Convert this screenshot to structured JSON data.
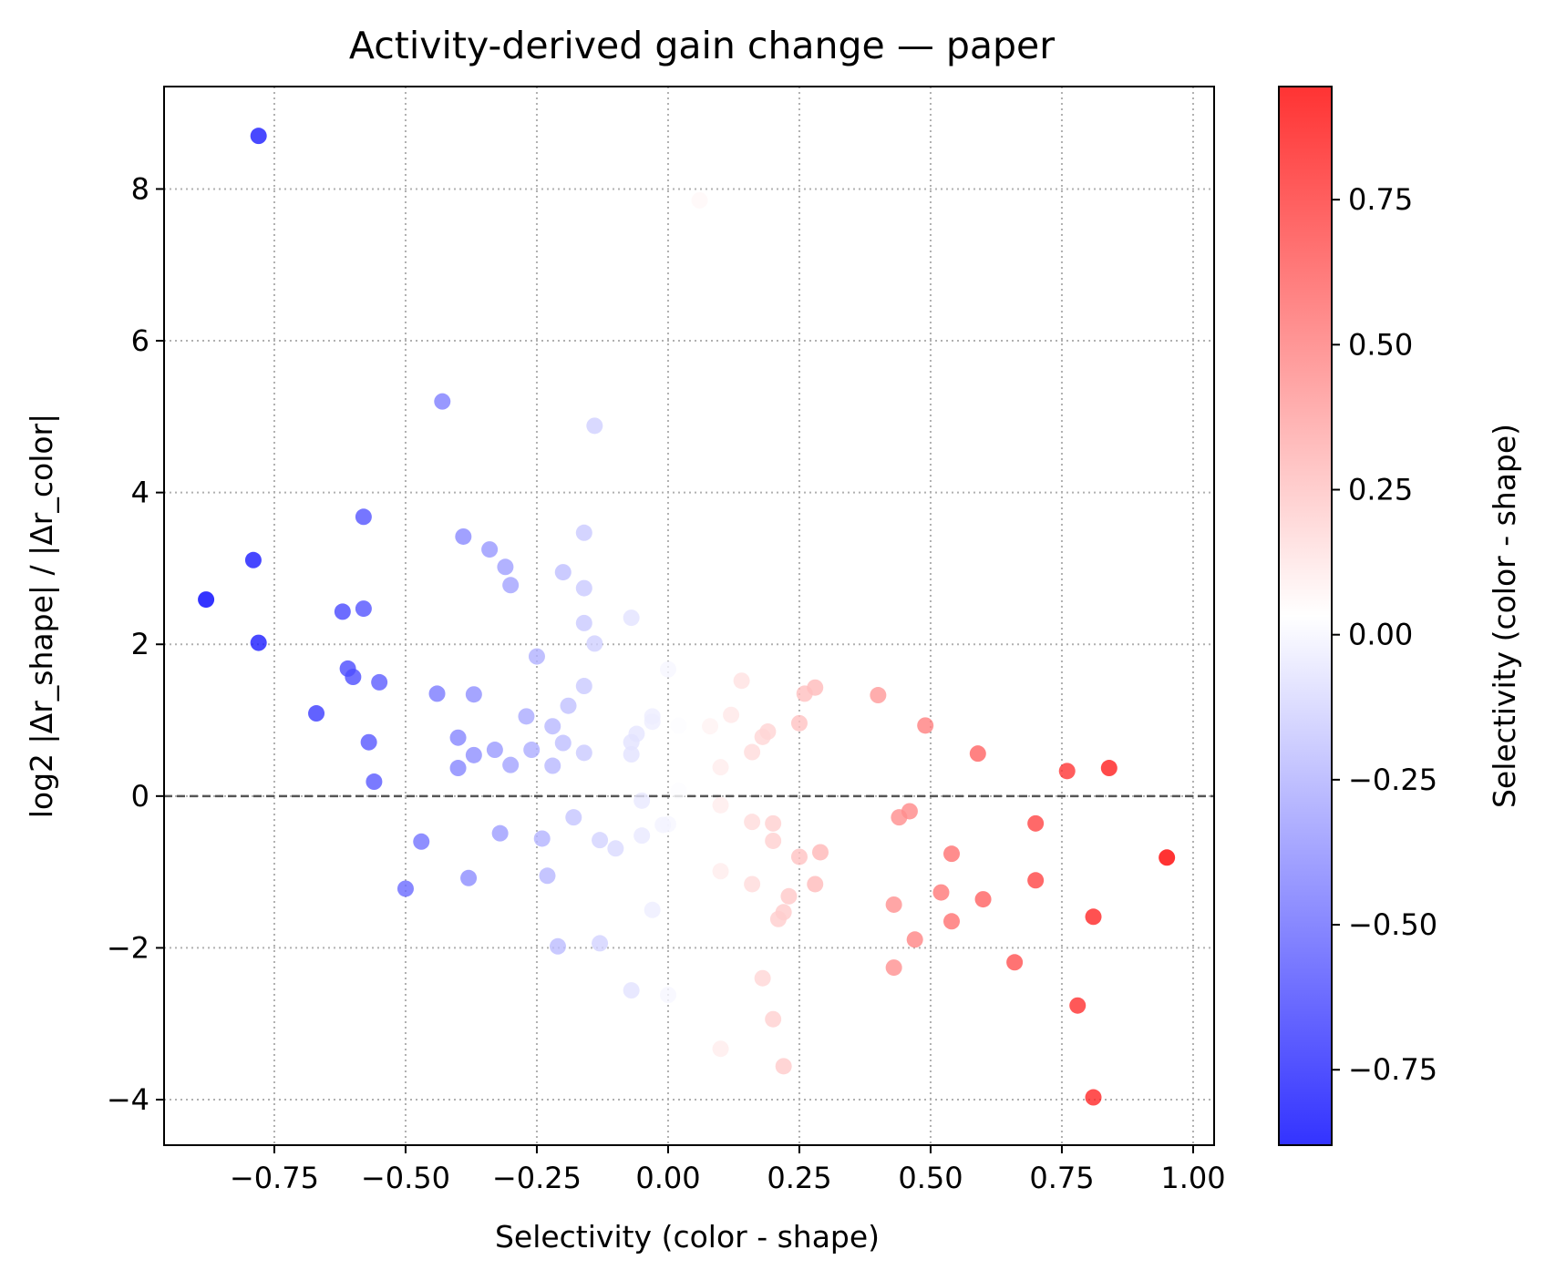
{
  "chart_data": {
    "type": "scatter",
    "title": "Activity-derived gain change — paper",
    "xlabel": "Selectivity (color - shape)",
    "ylabel": "log2 |Δr_shape| / |Δr_color|",
    "xlim": [
      -0.96,
      1.04
    ],
    "ylim": [
      -4.6,
      9.35
    ],
    "xticks": [
      -0.75,
      -0.5,
      -0.25,
      0.0,
      0.25,
      0.5,
      0.75,
      1.0
    ],
    "xtick_labels": [
      "−0.75",
      "−0.50",
      "−0.25",
      "0.00",
      "0.25",
      "0.50",
      "0.75",
      "1.00"
    ],
    "yticks": [
      -4,
      -2,
      0,
      2,
      4,
      6,
      8
    ],
    "ytick_labels": [
      "−4",
      "−2",
      "0",
      "2",
      "4",
      "6",
      "8"
    ],
    "grid": true,
    "reference_line": {
      "y": 0,
      "style": "dashed"
    },
    "colorbar": {
      "label": "Selectivity (color - shape)",
      "colormap": "bwr",
      "vmin": -0.88,
      "vmax": 0.945,
      "ticks": [
        -0.75,
        -0.5,
        -0.25,
        0.0,
        0.25,
        0.5,
        0.75
      ],
      "tick_labels": [
        "−0.75",
        "−0.50",
        "−0.25",
        "0.00",
        "0.25",
        "0.50",
        "0.75"
      ]
    },
    "points": [
      {
        "x": -0.78,
        "y": 8.7
      },
      {
        "x": 0.06,
        "y": 7.85
      },
      {
        "x": -0.43,
        "y": 5.2
      },
      {
        "x": -0.14,
        "y": 4.88
      },
      {
        "x": -0.58,
        "y": 3.68
      },
      {
        "x": -0.16,
        "y": 3.47
      },
      {
        "x": -0.39,
        "y": 3.42
      },
      {
        "x": -0.34,
        "y": 3.25
      },
      {
        "x": -0.79,
        "y": 3.11
      },
      {
        "x": -0.31,
        "y": 3.02
      },
      {
        "x": -0.2,
        "y": 2.95
      },
      {
        "x": -0.3,
        "y": 2.78
      },
      {
        "x": -0.16,
        "y": 2.74
      },
      {
        "x": -0.88,
        "y": 2.59
      },
      {
        "x": -0.58,
        "y": 2.47
      },
      {
        "x": -0.62,
        "y": 2.43
      },
      {
        "x": -0.07,
        "y": 2.35
      },
      {
        "x": -0.16,
        "y": 2.28
      },
      {
        "x": -0.78,
        "y": 2.02
      },
      {
        "x": -0.14,
        "y": 2.01
      },
      {
        "x": -0.25,
        "y": 1.84
      },
      {
        "x": -0.61,
        "y": 1.68
      },
      {
        "x": 0.0,
        "y": 1.67
      },
      {
        "x": -0.6,
        "y": 1.57
      },
      {
        "x": 0.14,
        "y": 1.52
      },
      {
        "x": -0.55,
        "y": 1.5
      },
      {
        "x": -0.16,
        "y": 1.45
      },
      {
        "x": 0.28,
        "y": 1.43
      },
      {
        "x": 0.26,
        "y": 1.35
      },
      {
        "x": -0.44,
        "y": 1.35
      },
      {
        "x": -0.37,
        "y": 1.34
      },
      {
        "x": 0.4,
        "y": 1.33
      },
      {
        "x": -0.19,
        "y": 1.19
      },
      {
        "x": -0.67,
        "y": 1.09
      },
      {
        "x": 0.12,
        "y": 1.07
      },
      {
        "x": -0.27,
        "y": 1.05
      },
      {
        "x": -0.03,
        "y": 1.05
      },
      {
        "x": -0.03,
        "y": 0.98
      },
      {
        "x": 0.25,
        "y": 0.96
      },
      {
        "x": 0.02,
        "y": 0.93
      },
      {
        "x": 0.49,
        "y": 0.93
      },
      {
        "x": 0.08,
        "y": 0.92
      },
      {
        "x": -0.22,
        "y": 0.92
      },
      {
        "x": 0.19,
        "y": 0.85
      },
      {
        "x": -0.06,
        "y": 0.82
      },
      {
        "x": 0.18,
        "y": 0.78
      },
      {
        "x": -0.4,
        "y": 0.77
      },
      {
        "x": -0.07,
        "y": 0.71
      },
      {
        "x": -0.57,
        "y": 0.71
      },
      {
        "x": -0.2,
        "y": 0.7
      },
      {
        "x": -0.33,
        "y": 0.61
      },
      {
        "x": -0.26,
        "y": 0.61
      },
      {
        "x": 0.16,
        "y": 0.58
      },
      {
        "x": -0.16,
        "y": 0.57
      },
      {
        "x": 0.59,
        "y": 0.56
      },
      {
        "x": -0.07,
        "y": 0.55
      },
      {
        "x": -0.37,
        "y": 0.54
      },
      {
        "x": -0.3,
        "y": 0.41
      },
      {
        "x": -0.22,
        "y": 0.4
      },
      {
        "x": 0.1,
        "y": 0.38
      },
      {
        "x": -0.4,
        "y": 0.37
      },
      {
        "x": 0.84,
        "y": 0.37
      },
      {
        "x": 0.76,
        "y": 0.33
      },
      {
        "x": -0.56,
        "y": 0.19
      },
      {
        "x": 0.02,
        "y": 0.07
      },
      {
        "x": -0.05,
        "y": -0.06
      },
      {
        "x": 0.1,
        "y": -0.12
      },
      {
        "x": 0.46,
        "y": -0.2
      },
      {
        "x": -0.18,
        "y": -0.28
      },
      {
        "x": 0.44,
        "y": -0.28
      },
      {
        "x": 0.16,
        "y": -0.34
      },
      {
        "x": 0.7,
        "y": -0.36
      },
      {
        "x": 0.2,
        "y": -0.36
      },
      {
        "x": 0.0,
        "y": -0.37
      },
      {
        "x": -0.01,
        "y": -0.38
      },
      {
        "x": -0.32,
        "y": -0.49
      },
      {
        "x": -0.05,
        "y": -0.52
      },
      {
        "x": -0.24,
        "y": -0.56
      },
      {
        "x": -0.13,
        "y": -0.58
      },
      {
        "x": 0.2,
        "y": -0.59
      },
      {
        "x": -0.47,
        "y": -0.6
      },
      {
        "x": -0.1,
        "y": -0.69
      },
      {
        "x": 0.29,
        "y": -0.74
      },
      {
        "x": 0.54,
        "y": -0.76
      },
      {
        "x": 0.25,
        "y": -0.8
      },
      {
        "x": 0.95,
        "y": -0.81
      },
      {
        "x": 0.1,
        "y": -0.99
      },
      {
        "x": -0.23,
        "y": -1.05
      },
      {
        "x": -0.38,
        "y": -1.08
      },
      {
        "x": 0.7,
        "y": -1.11
      },
      {
        "x": 0.16,
        "y": -1.16
      },
      {
        "x": 0.28,
        "y": -1.16
      },
      {
        "x": -0.5,
        "y": -1.22
      },
      {
        "x": 0.52,
        "y": -1.27
      },
      {
        "x": 0.23,
        "y": -1.32
      },
      {
        "x": 0.6,
        "y": -1.36
      },
      {
        "x": 0.43,
        "y": -1.43
      },
      {
        "x": -0.03,
        "y": -1.5
      },
      {
        "x": 0.22,
        "y": -1.53
      },
      {
        "x": 0.81,
        "y": -1.59
      },
      {
        "x": 0.21,
        "y": -1.62
      },
      {
        "x": 0.54,
        "y": -1.65
      },
      {
        "x": 0.47,
        "y": -1.89
      },
      {
        "x": -0.13,
        "y": -1.94
      },
      {
        "x": -0.21,
        "y": -1.98
      },
      {
        "x": 0.66,
        "y": -2.19
      },
      {
        "x": 0.43,
        "y": -2.26
      },
      {
        "x": 0.18,
        "y": -2.4
      },
      {
        "x": -0.07,
        "y": -2.56
      },
      {
        "x": 0.0,
        "y": -2.62
      },
      {
        "x": 0.78,
        "y": -2.76
      },
      {
        "x": 0.2,
        "y": -2.94
      },
      {
        "x": 0.1,
        "y": -3.33
      },
      {
        "x": 0.22,
        "y": -3.56
      },
      {
        "x": 0.81,
        "y": -3.97
      }
    ]
  }
}
